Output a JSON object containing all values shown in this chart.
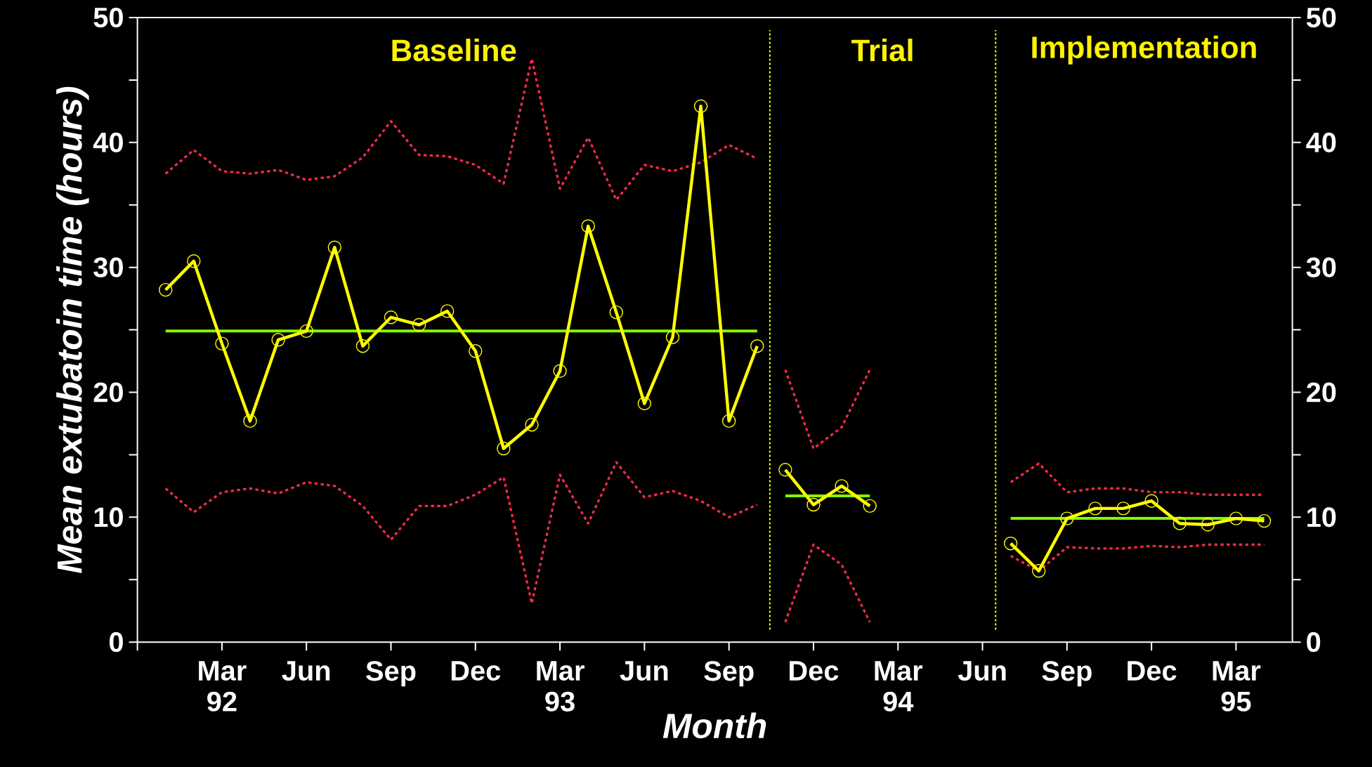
{
  "chart_data": {
    "type": "line",
    "xlabel": "Month",
    "ylabel": "Mean extubatoin time (hours)",
    "xlim": [
      "1991-12",
      "1995-05"
    ],
    "xticks": [
      {
        "value": "1991-12",
        "label": null
      },
      {
        "value": "1992-03",
        "label": "Mar 92"
      },
      {
        "value": "1992-06",
        "label": "Jun"
      },
      {
        "value": "1992-09",
        "label": "Sep"
      },
      {
        "value": "1992-12",
        "label": "Dec"
      },
      {
        "value": "1993-03",
        "label": "Mar 93"
      },
      {
        "value": "1993-06",
        "label": "Jun"
      },
      {
        "value": "1993-09",
        "label": "Sep"
      },
      {
        "value": "1993-12",
        "label": "Dec"
      },
      {
        "value": "1994-03",
        "label": "Mar 94"
      },
      {
        "value": "1994-06",
        "label": "Jun"
      },
      {
        "value": "1994-09",
        "label": "Sep"
      },
      {
        "value": "1994-12",
        "label": "Dec"
      },
      {
        "value": "1995-03",
        "label": "Mar 95"
      }
    ],
    "ylim": [
      0,
      50
    ],
    "yticks": [
      0,
      {
        "value": 5,
        "label": null
      },
      10,
      {
        "value": 15,
        "label": null
      },
      20,
      {
        "value": 25,
        "label": null
      },
      30,
      {
        "value": 35,
        "label": null
      },
      40,
      {
        "value": 45,
        "label": null
      },
      50
    ],
    "y2lim": [
      0,
      50
    ],
    "y2ticks": [
      0,
      {
        "value": 5,
        "label": null
      },
      10,
      {
        "value": 15,
        "label": null
      },
      20,
      {
        "value": 25,
        "label": null
      },
      30,
      {
        "value": 35,
        "label": null
      },
      40,
      {
        "value": 45,
        "label": null
      },
      50
    ],
    "grid": false,
    "ref_lines": [
      {
        "axis": "x",
        "value": "1993-10-15",
        "color": "#ffff00",
        "line_style": "dotted"
      },
      {
        "axis": "x",
        "value": "1994-06-15",
        "color": "#ffff00",
        "line_style": "dotted"
      }
    ],
    "annotations": [
      "Baseline",
      "Trial",
      "Implementation"
    ],
    "series": [
      {
        "type": "line",
        "color": "#ff2a4a",
        "line_style": "dotted",
        "marker": "none",
        "x": [
          "1992-01",
          "1992-02",
          "1992-03",
          "1992-04",
          "1992-05",
          "1992-06",
          "1992-07",
          "1992-08",
          "1992-09",
          "1992-10",
          "1992-11",
          "1992-12",
          "1993-01",
          "1993-02",
          "1993-03",
          "1993-04",
          "1993-05",
          "1993-06",
          "1993-07",
          "1993-08",
          "1993-09",
          "1993-10"
        ],
        "values": [
          37.5,
          39.4,
          37.7,
          37.5,
          37.8,
          37.0,
          37.3,
          38.8,
          41.7,
          39.0,
          38.9,
          38.2,
          36.7,
          46.7,
          36.3,
          40.4,
          35.4,
          38.2,
          37.7,
          38.4,
          39.8,
          38.7
        ]
      },
      {
        "type": "line",
        "color": "#ff2a4a",
        "line_style": "dotted",
        "marker": "none",
        "x": [
          "1992-01",
          "1992-02",
          "1992-03",
          "1992-04",
          "1992-05",
          "1992-06",
          "1992-07",
          "1992-08",
          "1992-09",
          "1992-10",
          "1992-11",
          "1992-12",
          "1993-01",
          "1993-02",
          "1993-03",
          "1993-04",
          "1993-05",
          "1993-06",
          "1993-07",
          "1993-08",
          "1993-09",
          "1993-10"
        ],
        "values": [
          12.3,
          10.4,
          12.0,
          12.3,
          11.9,
          12.8,
          12.5,
          10.9,
          8.2,
          10.9,
          10.9,
          11.8,
          13.2,
          3.1,
          13.4,
          9.5,
          14.4,
          11.6,
          12.1,
          11.3,
          10.0,
          11.0
        ]
      },
      {
        "type": "line",
        "color": "#80ff00",
        "line_style": "solid",
        "marker": "none",
        "x": [
          "1992-01",
          "1993-10"
        ],
        "values": [
          24.9,
          24.9
        ]
      },
      {
        "type": "line",
        "color": "#ffff00",
        "line_style": "solid",
        "marker": "circle",
        "x": [
          "1992-01",
          "1992-02",
          "1992-03",
          "1992-04",
          "1992-05",
          "1992-06",
          "1992-07",
          "1992-08",
          "1992-09",
          "1992-10",
          "1992-11",
          "1992-12",
          "1993-01",
          "1993-02",
          "1993-03",
          "1993-04",
          "1993-05",
          "1993-06",
          "1993-07",
          "1993-08",
          "1993-09",
          "1993-10"
        ],
        "values": [
          28.2,
          30.5,
          23.9,
          17.7,
          24.2,
          24.9,
          31.6,
          23.7,
          26.0,
          25.4,
          26.5,
          23.3,
          15.5,
          17.4,
          21.7,
          33.3,
          26.4,
          19.1,
          24.4,
          42.9,
          17.7,
          23.7
        ]
      },
      {
        "type": "line",
        "color": "#ff2a4a",
        "line_style": "dotted",
        "marker": "none",
        "x": [
          "1993-11",
          "1993-12",
          "1994-01",
          "1994-02"
        ],
        "values": [
          21.8,
          15.5,
          17.2,
          21.8
        ]
      },
      {
        "type": "line",
        "color": "#ff2a4a",
        "line_style": "dotted",
        "marker": "none",
        "x": [
          "1993-11",
          "1993-12",
          "1994-01",
          "1994-02"
        ],
        "values": [
          1.6,
          7.8,
          6.2,
          1.6
        ]
      },
      {
        "type": "line",
        "color": "#80ff00",
        "line_style": "solid",
        "marker": "none",
        "x": [
          "1993-11",
          "1994-02"
        ],
        "values": [
          11.7,
          11.7
        ]
      },
      {
        "type": "line",
        "color": "#ffff00",
        "line_style": "solid",
        "marker": "circle",
        "x": [
          "1993-11",
          "1993-12",
          "1994-01",
          "1994-02"
        ],
        "values": [
          13.8,
          11.0,
          12.5,
          10.9
        ]
      },
      {
        "type": "line",
        "color": "#ff2a4a",
        "line_style": "dotted",
        "marker": "none",
        "x": [
          "1994-07",
          "1994-08",
          "1994-09",
          "1994-10",
          "1994-11",
          "1994-12",
          "1995-01",
          "1995-02",
          "1995-03",
          "1995-04"
        ],
        "values": [
          12.8,
          14.3,
          12.0,
          12.3,
          12.3,
          12.0,
          12.0,
          11.8,
          11.8,
          11.8
        ]
      },
      {
        "type": "line",
        "color": "#ff2a4a",
        "line_style": "dotted",
        "marker": "none",
        "x": [
          "1994-07",
          "1994-08",
          "1994-09",
          "1994-10",
          "1994-11",
          "1994-12",
          "1995-01",
          "1995-02",
          "1995-03",
          "1995-04"
        ],
        "values": [
          6.9,
          5.7,
          7.6,
          7.5,
          7.5,
          7.7,
          7.6,
          7.8,
          7.8,
          7.8
        ]
      },
      {
        "type": "line",
        "color": "#80ff00",
        "line_style": "solid",
        "marker": "none",
        "x": [
          "1994-07",
          "1995-04"
        ],
        "values": [
          9.9,
          9.9
        ]
      },
      {
        "type": "line",
        "color": "#ffff00",
        "line_style": "solid",
        "marker": "circle",
        "x": [
          "1994-07",
          "1994-08",
          "1994-09",
          "1994-10",
          "1994-11",
          "1994-12",
          "1995-01",
          "1995-02",
          "1995-03",
          "1995-04"
        ],
        "values": [
          7.9,
          5.7,
          9.9,
          10.7,
          10.7,
          11.3,
          9.5,
          9.4,
          9.9,
          9.7
        ]
      }
    ]
  }
}
